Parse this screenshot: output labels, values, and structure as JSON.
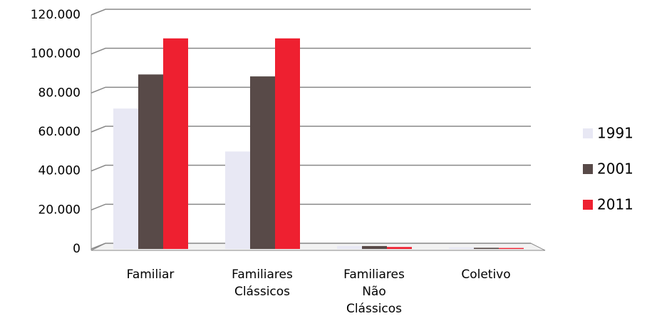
{
  "chart_data": {
    "type": "bar",
    "categories": [
      "Familiar",
      "Familiares Clássicos",
      "Familiares Não Clássicos",
      "Coletivo"
    ],
    "series": [
      {
        "name": "1991",
        "color": "#e8e8f4",
        "values": [
          72000,
          50000,
          1500,
          800
        ]
      },
      {
        "name": "2001",
        "color": "#584a48",
        "values": [
          89500,
          88500,
          1500,
          600
        ]
      },
      {
        "name": "2011",
        "color": "#ee2030",
        "values": [
          108000,
          108000,
          1000,
          500
        ]
      }
    ],
    "ylim": [
      0,
      120000
    ],
    "yticks": [
      0,
      {
        "value": 20000,
        "label": "20.000"
      },
      {
        "value": 40000,
        "label": "40.000"
      },
      {
        "value": 60000,
        "label": "60.000"
      },
      {
        "value": 80000,
        "label": "80.000"
      },
      {
        "value": 100000,
        "label": "100.000"
      },
      {
        "value": 120000,
        "label": "120.000"
      }
    ],
    "grid": true,
    "legend": "right"
  }
}
